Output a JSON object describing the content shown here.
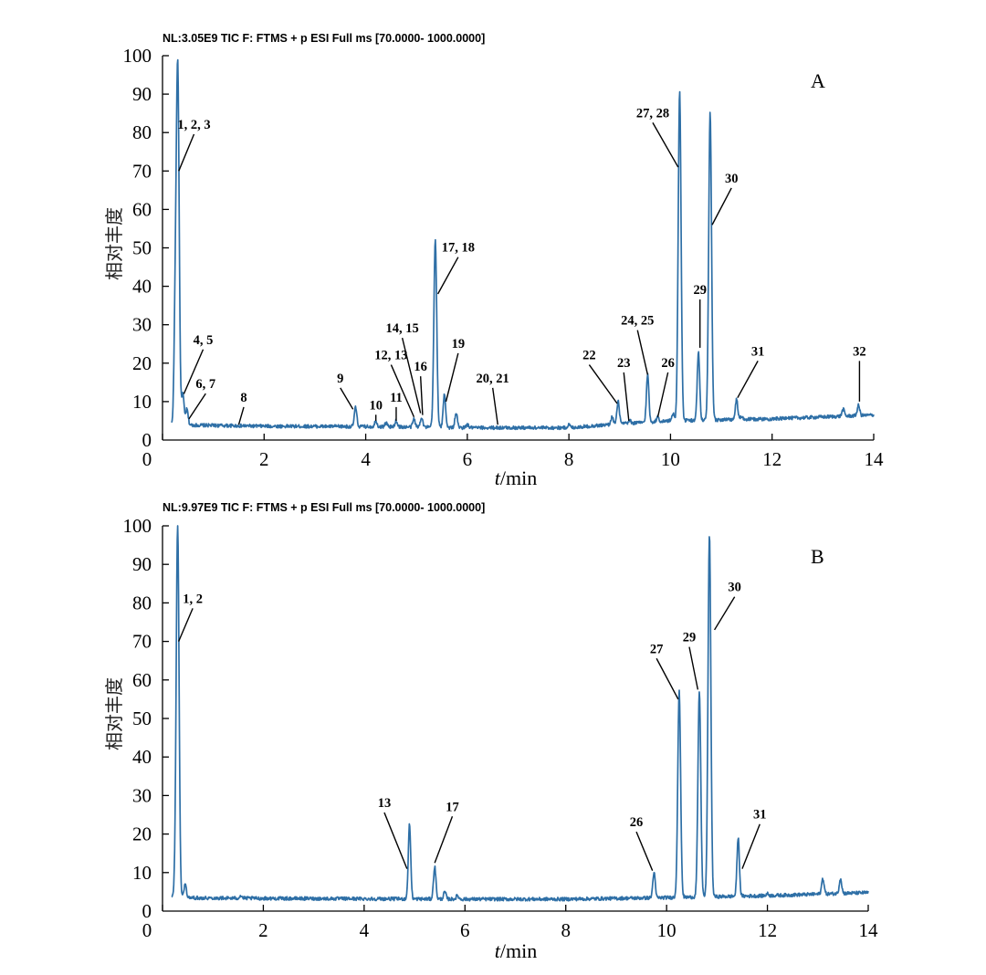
{
  "chart_data": [
    {
      "type": "line",
      "panel": "A",
      "header": "NL:3.05E9 TIC F: FTMS + p ESI Full ms [70.0000- 1000.0000]",
      "xlabel_italic": "t",
      "xlabel_rest": "/min",
      "ylabel": "相对丰度",
      "xlim": [
        0,
        14
      ],
      "ylim": [
        0,
        100
      ],
      "x_ticks": [
        "0",
        "2",
        "4",
        "6",
        "8",
        "10",
        "12",
        "14"
      ],
      "y_ticks": [
        "0",
        "10",
        "20",
        "30",
        "40",
        "50",
        "60",
        "70",
        "80",
        "90",
        "100"
      ],
      "baseline": [
        [
          0,
          4
        ],
        [
          2,
          3.6
        ],
        [
          4,
          3.5
        ],
        [
          6,
          3.2
        ],
        [
          8,
          3.2
        ],
        [
          9,
          4.2
        ],
        [
          10,
          5
        ],
        [
          12,
          5.5
        ],
        [
          14,
          6.5
        ]
      ],
      "peaks": [
        {
          "t": 0.25,
          "height": 30
        },
        {
          "t": 0.3,
          "height": 96
        },
        {
          "t": 0.4,
          "height": 12
        },
        {
          "t": 0.48,
          "height": 8
        },
        {
          "t": 3.8,
          "height": 8.5
        },
        {
          "t": 4.2,
          "height": 5
        },
        {
          "t": 4.4,
          "height": 4.5
        },
        {
          "t": 4.6,
          "height": 5
        },
        {
          "t": 4.95,
          "height": 5.5
        },
        {
          "t": 5.1,
          "height": 6
        },
        {
          "t": 5.37,
          "height": 52
        },
        {
          "t": 5.55,
          "height": 12
        },
        {
          "t": 5.78,
          "height": 7
        },
        {
          "t": 6.0,
          "height": 4
        },
        {
          "t": 8.0,
          "height": 4
        },
        {
          "t": 8.85,
          "height": 6
        },
        {
          "t": 8.97,
          "height": 10
        },
        {
          "t": 9.2,
          "height": 5
        },
        {
          "t": 9.55,
          "height": 17
        },
        {
          "t": 9.75,
          "height": 6
        },
        {
          "t": 10.05,
          "height": 7
        },
        {
          "t": 10.18,
          "height": 91
        },
        {
          "t": 10.55,
          "height": 23
        },
        {
          "t": 10.78,
          "height": 85
        },
        {
          "t": 11.3,
          "height": 10.5
        },
        {
          "t": 11.4,
          "height": 6
        },
        {
          "t": 12.3,
          "height": 6
        },
        {
          "t": 13.4,
          "height": 8
        },
        {
          "t": 13.7,
          "height": 9
        }
      ],
      "annotations": [
        {
          "label": "1, 2, 3",
          "tip": [
            0.32,
            70
          ],
          "text_at": [
            0.62,
            81
          ]
        },
        {
          "label": "4, 5",
          "tip": [
            0.42,
            12
          ],
          "text_at": [
            0.8,
            25
          ]
        },
        {
          "label": "6, 7",
          "tip": [
            0.52,
            5.5
          ],
          "text_at": [
            0.85,
            13.5
          ]
        },
        {
          "label": "8",
          "tip": [
            1.5,
            4
          ],
          "text_at": [
            1.6,
            10
          ]
        },
        {
          "label": "9",
          "tip": [
            3.75,
            8
          ],
          "text_at": [
            3.5,
            15
          ]
        },
        {
          "label": "10",
          "tip": [
            4.2,
            5
          ],
          "text_at": [
            4.2,
            8
          ]
        },
        {
          "label": "11",
          "tip": [
            4.6,
            5
          ],
          "text_at": [
            4.6,
            10
          ]
        },
        {
          "label": "12, 13",
          "tip": [
            4.95,
            6
          ],
          "text_at": [
            4.5,
            21
          ]
        },
        {
          "label": "14, 15",
          "tip": [
            5.08,
            7
          ],
          "text_at": [
            4.72,
            28
          ]
        },
        {
          "label": "16",
          "tip": [
            5.12,
            6.5
          ],
          "text_at": [
            5.08,
            18
          ]
        },
        {
          "label": "17, 18",
          "tip": [
            5.42,
            38
          ],
          "text_at": [
            5.82,
            49
          ]
        },
        {
          "label": "19",
          "tip": [
            5.58,
            10
          ],
          "text_at": [
            5.82,
            24
          ]
        },
        {
          "label": "20, 21",
          "tip": [
            6.6,
            4
          ],
          "text_at": [
            6.5,
            15
          ]
        },
        {
          "label": "22",
          "tip": [
            8.95,
            9.5
          ],
          "text_at": [
            8.4,
            21
          ]
        },
        {
          "label": "23",
          "tip": [
            9.18,
            5
          ],
          "text_at": [
            9.08,
            19
          ]
        },
        {
          "label": "24, 25",
          "tip": [
            9.55,
            17
          ],
          "text_at": [
            9.35,
            30
          ]
        },
        {
          "label": "26",
          "tip": [
            9.75,
            6
          ],
          "text_at": [
            9.95,
            19
          ]
        },
        {
          "label": "27, 28",
          "tip": [
            10.15,
            71
          ],
          "text_at": [
            9.65,
            84
          ]
        },
        {
          "label": "29",
          "tip": [
            10.58,
            24
          ],
          "text_at": [
            10.58,
            38
          ]
        },
        {
          "label": "30",
          "tip": [
            10.82,
            56
          ],
          "text_at": [
            11.2,
            67
          ]
        },
        {
          "label": "31",
          "tip": [
            11.32,
            11
          ],
          "text_at": [
            11.72,
            22
          ]
        },
        {
          "label": "32",
          "tip": [
            13.72,
            10
          ],
          "text_at": [
            13.72,
            22
          ]
        }
      ]
    },
    {
      "type": "line",
      "panel": "B",
      "header": "NL:9.97E9 TIC F: FTMS + p ESI Full ms [70.0000- 1000.0000]",
      "xlabel_italic": "t",
      "xlabel_rest": "/min",
      "ylabel": "相对丰度",
      "xlim": [
        0,
        14
      ],
      "ylim": [
        0,
        100
      ],
      "x_ticks": [
        "0",
        "2",
        "4",
        "6",
        "8",
        "10",
        "12",
        "14"
      ],
      "y_ticks": [
        "0",
        "10",
        "20",
        "30",
        "40",
        "50",
        "60",
        "70",
        "80",
        "90",
        "100"
      ],
      "baseline": [
        [
          0,
          3.5
        ],
        [
          2,
          3.3
        ],
        [
          4,
          3.2
        ],
        [
          6,
          3.1
        ],
        [
          8,
          3.1
        ],
        [
          10,
          3.5
        ],
        [
          12,
          4
        ],
        [
          14,
          4.8
        ]
      ],
      "peaks": [
        {
          "t": 0.25,
          "height": 6
        },
        {
          "t": 0.3,
          "height": 100
        },
        {
          "t": 0.45,
          "height": 7
        },
        {
          "t": 1.55,
          "height": 4
        },
        {
          "t": 4.9,
          "height": 22.5
        },
        {
          "t": 5.4,
          "height": 11.5
        },
        {
          "t": 5.6,
          "height": 5
        },
        {
          "t": 5.85,
          "height": 4
        },
        {
          "t": 9.75,
          "height": 10
        },
        {
          "t": 10.25,
          "height": 57
        },
        {
          "t": 10.65,
          "height": 57
        },
        {
          "t": 10.85,
          "height": 98
        },
        {
          "t": 11.42,
          "height": 19
        },
        {
          "t": 12.0,
          "height": 4.5
        },
        {
          "t": 13.1,
          "height": 8.5
        },
        {
          "t": 13.45,
          "height": 8.5
        }
      ],
      "annotations": [
        {
          "label": "1, 2",
          "tip": [
            0.32,
            70
          ],
          "text_at": [
            0.6,
            80
          ]
        },
        {
          "label": "13",
          "tip": [
            4.85,
            11
          ],
          "text_at": [
            4.4,
            27
          ]
        },
        {
          "label": "17",
          "tip": [
            5.4,
            12.5
          ],
          "text_at": [
            5.75,
            26
          ]
        },
        {
          "label": "26",
          "tip": [
            9.72,
            10.5
          ],
          "text_at": [
            9.4,
            22
          ]
        },
        {
          "label": "27",
          "tip": [
            10.23,
            55
          ],
          "text_at": [
            9.8,
            67
          ]
        },
        {
          "label": "29",
          "tip": [
            10.62,
            57.5
          ],
          "text_at": [
            10.45,
            70
          ]
        },
        {
          "label": "30",
          "tip": [
            10.95,
            73
          ],
          "text_at": [
            11.35,
            83
          ]
        },
        {
          "label": "31",
          "tip": [
            11.5,
            11
          ],
          "text_at": [
            11.85,
            24
          ]
        }
      ]
    }
  ]
}
